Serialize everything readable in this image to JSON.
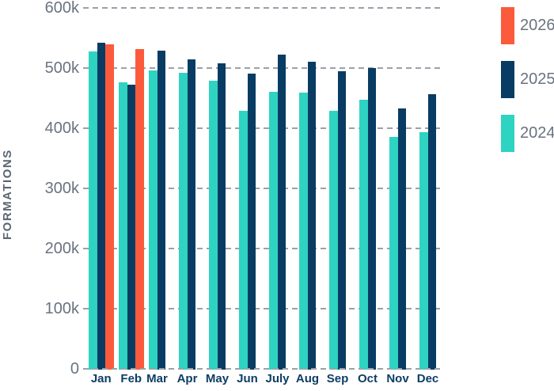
{
  "chart_data": {
    "type": "bar",
    "title": "",
    "ylabel": "FORMATIONS",
    "xlabel": "",
    "categories": [
      "Jan",
      "Feb",
      "Mar",
      "Apr",
      "May",
      "Jun",
      "July",
      "Aug",
      "Sep",
      "Oct",
      "Nov",
      "Dec"
    ],
    "ylim": [
      0,
      600000
    ],
    "y_ticks": [
      {
        "label": "600k",
        "value": 600000
      },
      {
        "label": "500k",
        "value": 500000
      },
      {
        "label": "400k",
        "value": 400000
      },
      {
        "label": "300k",
        "value": 300000
      },
      {
        "label": "200k",
        "value": 200000
      },
      {
        "label": "100k",
        "value": 100000
      },
      {
        "label": "0",
        "value": 0
      }
    ],
    "grid": "horizontal-dashed",
    "legend_position": "top-right",
    "series": [
      {
        "name": "2026",
        "color": "#fb5b3c",
        "values": [
          539000,
          532000,
          null,
          null,
          null,
          null,
          null,
          null,
          null,
          null,
          null,
          null
        ]
      },
      {
        "name": "2025",
        "color": "#093c63",
        "values": [
          542000,
          472000,
          529000,
          514000,
          508000,
          491000,
          522000,
          510000,
          495000,
          500000,
          433000,
          457000
        ]
      },
      {
        "name": "2024",
        "color": "#2ed3c1",
        "values": [
          527000,
          476000,
          496000,
          492000,
          479000,
          429000,
          460000,
          459000,
          429000,
          448000,
          385000,
          393000
        ]
      }
    ],
    "bar_group_order": [
      "2024",
      "2025",
      "2026"
    ]
  },
  "colors": {
    "background": "#ffffff",
    "gridline": "#9aa1a9",
    "y_tick_text": "#6a7380",
    "x_tick_text": "#0d3d64",
    "axis_title_text": "#5b6572",
    "legend_text": "#6a7380"
  }
}
